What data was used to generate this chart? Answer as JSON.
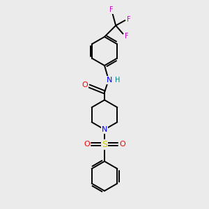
{
  "bg_color": "#ebebeb",
  "bond_color": "#000000",
  "atom_colors": {
    "O": "#ff0000",
    "N": "#0000ff",
    "S": "#cccc00",
    "F": "#cc00cc",
    "H": "#008080",
    "C": "#000000"
  },
  "figsize": [
    3.0,
    3.0
  ],
  "dpi": 100,
  "xlim": [
    0,
    10
  ],
  "ylim": [
    0,
    10
  ]
}
